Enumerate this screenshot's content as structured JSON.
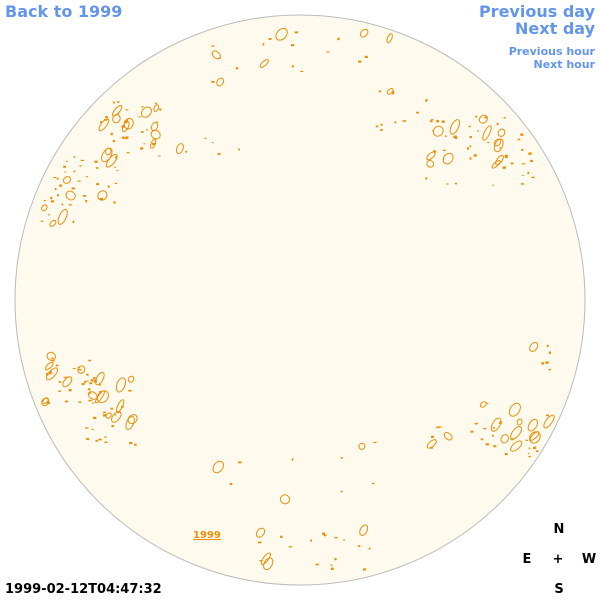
{
  "nav": {
    "back_label": "Back to 1999",
    "previous_day": "Previous day",
    "next_day": "Next day",
    "previous_hour": "Previous hour",
    "next_hour": "Next hour"
  },
  "compass": {
    "north": "N",
    "east": "E",
    "center": "+",
    "west": "W",
    "south": "S"
  },
  "timestamp": "1999-02-12T04:47:32",
  "year_link": "1999",
  "colors": {
    "disk_fill": "#fffaee",
    "disk_stroke": "#bbbbbb",
    "contour": "#e8900a",
    "link": "#6495ed"
  }
}
